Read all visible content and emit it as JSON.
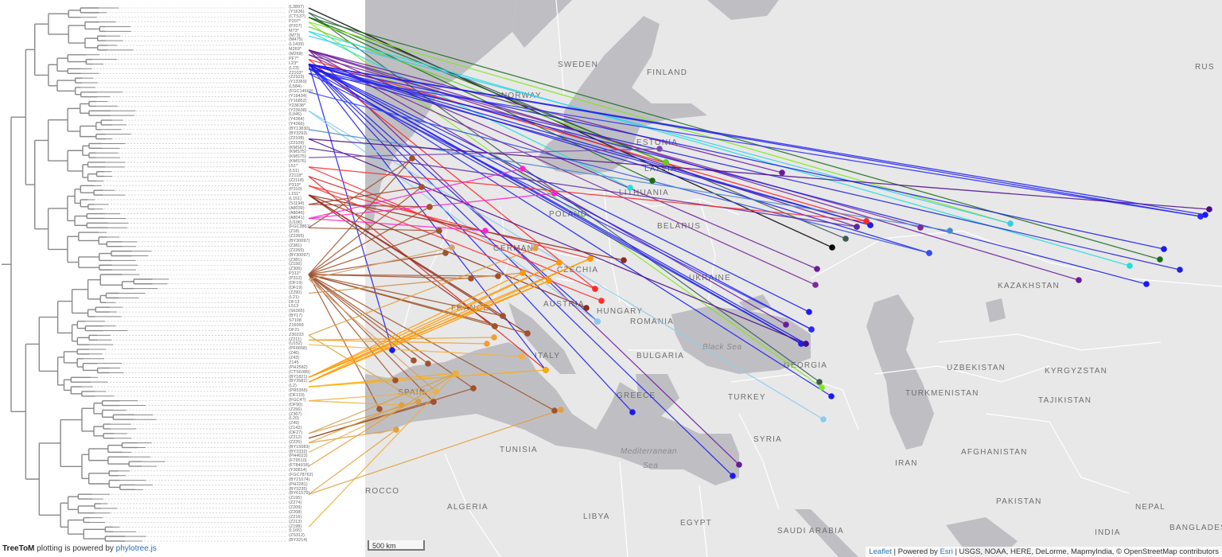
{
  "credit": {
    "brand": "TreeToM",
    "text": " plotting is powered by ",
    "link": "phylotree.js"
  },
  "map": {
    "scale_label": "500 km",
    "attribution": {
      "leaflet": "Leaflet",
      "sep1": " | Powered by ",
      "esri": "Esri",
      "rest": " | USGS, NOAA, HERE, DeLorme, MapmyIndia, © OpenStreetMap contributors"
    },
    "labels": [
      "SWEDEN",
      "FINLAND",
      "RUS",
      "NORWAY",
      "ESTONIA",
      "LATVIA",
      "LITHUANIA",
      "BELARUS",
      "POLAND",
      "GERMANY",
      "CZECHIA",
      "AUSTRIA",
      "HUNGARY",
      "ROMANIA",
      "UKRAINE",
      "BULGARIA",
      "Black Sea",
      "GEORGIA",
      "TURKEY",
      "GREECE",
      "ITALY",
      "SPAIN",
      "FRANCE",
      "SYRIA",
      "TUNISIA",
      "Mediterranean",
      "Sea",
      "ALGERIA",
      "LIBYA",
      "EGYPT",
      "SAUDI ARABIA",
      "IRAN",
      "KAZAKHSTAN",
      "UZBEKISTAN",
      "TURKMENISTAN",
      "KYRGYZSTAN",
      "TAJIKISTAN",
      "AFGHANISTAN",
      "PAKISTAN",
      "NEPAL",
      "INDIA",
      "BANGLADES",
      "ROCCO"
    ]
  },
  "tree": {
    "leaves": [
      "(L3897)",
      "(Y1636)",
      "(CTS3?)",
      "P207*",
      "(P207)",
      "M73*",
      "(M73)",
      "(M475)",
      "(L1439)",
      "M269*",
      "(M269)",
      "PF7*",
      "L23*",
      "(L23)",
      "Z2103*",
      "(Z2103)",
      "(Y13369)",
      "(L584)",
      "(FGC14569)",
      "(Y19434)",
      "(Y16852)",
      "Y23638*",
      "(Y23638)",
      "(L945)",
      "(Y4364)",
      "(Y4366)",
      "(BY13830)",
      "(BY3293)",
      "(Z2108)",
      "(Z2109)",
      "(KMS67)",
      "(KMS75)",
      "(KMS75)",
      "(KMS76)",
      "L51*",
      "(L51)",
      "Z2118*",
      "(Z2118)",
      "P310*",
      "(P310)",
      "L151*",
      "(L151)",
      "(S1194)",
      "(A8039)",
      "(A8046)",
      "(A8041)",
      "(U106)",
      "(FGC3861)",
      "(Z18)",
      "(Z2265)",
      "(BY30097)",
      "(Z381)",
      "(Z2265)",
      "(BY30097)",
      "(Z381)",
      "(Z156)",
      "(Z306)",
      "P312*",
      "(P312)",
      "(DF19)",
      "(DF19)",
      "(Z290)",
      "(L21)",
      "DF13",
      "L513",
      "(S6365)",
      "(BY17)",
      "S7108",
      "Z16099",
      "DF21",
      "Z30233",
      "(Z211)",
      "(U152)",
      "(PF6658)",
      "(Z46)",
      "(Z43)",
      "Z145",
      "(PH2582)",
      "(CTS6389)",
      "(BY1821)",
      "(BY3581)",
      "(L2)",
      "(PR5365)",
      "(DF110)",
      "(FGC4?)",
      "(DF90)",
      "(Z256)",
      "(Z367)",
      "(L20)",
      "(Z49)",
      "(Z142)",
      "(DF27)",
      "(Z212)",
      "(Z225)",
      "(BY15083)",
      "(BY3332)",
      "(PH4023)",
      "(FT9510)",
      "(FT84918)",
      "(Y30814)",
      "(FGC78762)",
      "(BY21074)",
      "(PH2281)",
      "(BY3235)",
      "(BY61579)",
      "(Z195)",
      "(Z274)",
      "(Z209)",
      "(Z208)",
      "(Z216)",
      "(Z213)",
      "(Z198)",
      "(L165)",
      "(ZS312)",
      "(BY3214)"
    ]
  },
  "colors": {
    "sea": "#bfbfc3",
    "land": "#e8e8e8",
    "border": "#ffffff",
    "tree_line": "#888888"
  }
}
